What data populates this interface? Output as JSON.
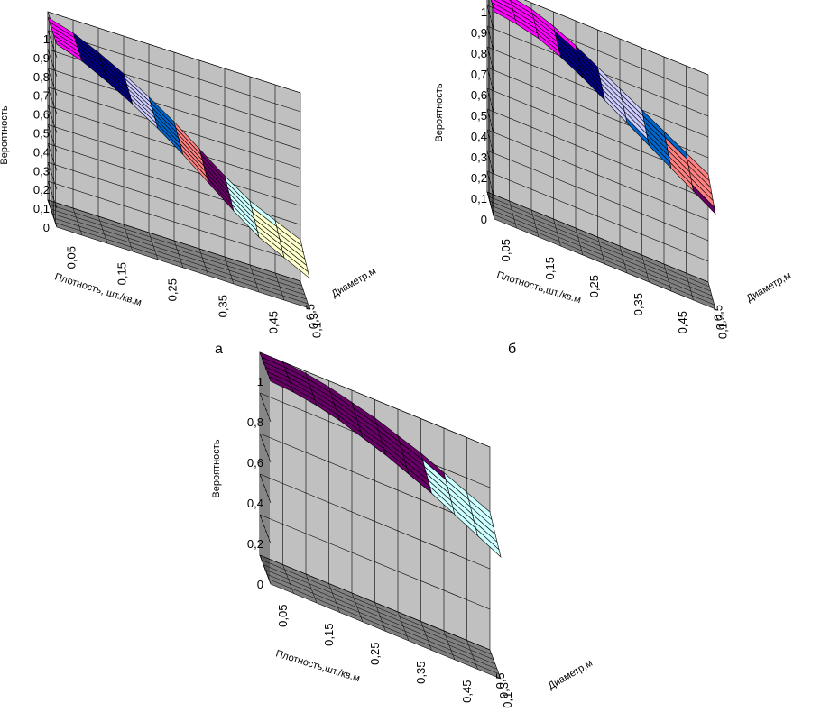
{
  "colors": {
    "wall": "#c0c0c0",
    "floor": "#808080",
    "grid": "#000000",
    "band_0.9_1": "#ff00ff",
    "band_0.8_0.9": "#000080",
    "band_0.7_0.8": "#ccccff",
    "band_0.6_0.7": "#0066cc",
    "band_0.5_0.6": "#ff8080",
    "band_0.4_0.5": "#660066",
    "band_0.3_0.4": "#ccffff",
    "band_0.2_0.3": "#ffffcc",
    "band_0.8_1_coarse": "#660066",
    "band_0.6_0.8_coarse": "#ccffff"
  },
  "chart_data": [
    {
      "type": "surface3d",
      "caption": "а",
      "zlabel": "Вероятность",
      "xlabel": "Плотность, шт./кв.м",
      "ylabel": "Диаметр,м",
      "x_ticks": [
        "0,05",
        "0,15",
        "0,25",
        "0,35",
        "0,45"
      ],
      "y_ticks": [
        "0,1",
        "0,3",
        "0,5"
      ],
      "z_ticks": [
        "0",
        "0,1",
        "0,2",
        "0,3",
        "0,4",
        "0,5",
        "0,6",
        "0,7",
        "0,8",
        "0,9",
        "1"
      ],
      "zlim": [
        0,
        1
      ],
      "z_at_max_density": [
        0.97,
        0.93,
        0.87,
        0.8,
        0.72,
        0.63,
        0.53,
        0.43,
        0.34,
        0.28,
        0.22
      ],
      "diameter_effect": 0.06,
      "band_step": 0.1
    },
    {
      "type": "surface3d",
      "caption": "б",
      "zlabel": "Вероятность",
      "xlabel": "Плотность,шт./кв.м",
      "ylabel": "Диаметр,м",
      "x_ticks": [
        "0,05",
        "0,15",
        "0,25",
        "0,35",
        "0,45"
      ],
      "y_ticks": [
        "0,1",
        "0,3",
        "0,5"
      ],
      "z_ticks": [
        "0",
        "0,1",
        "0,2",
        "0,3",
        "0,4",
        "0,5",
        "0,6",
        "0,7",
        "0,8",
        "0,9",
        "1"
      ],
      "zlim": [
        0,
        1
      ],
      "z_at_max_density": [
        1.0,
        0.99,
        0.97,
        0.93,
        0.88,
        0.82,
        0.76,
        0.7,
        0.64,
        0.58,
        0.52
      ],
      "diameter_effect": 0.06,
      "band_step": 0.1
    },
    {
      "type": "surface3d",
      "caption": "",
      "zlabel": "Вероятность",
      "xlabel": "Плотность,шт./кв.м",
      "ylabel": "Диаметр,м",
      "x_ticks": [
        "0,05",
        "0,15",
        "0,25",
        "0,35",
        "0,45"
      ],
      "y_ticks": [
        "0,1",
        "0,3",
        "0,5"
      ],
      "z_ticks": [
        "0",
        "0,2",
        "0,4",
        "0,6",
        "0,8",
        "1"
      ],
      "zlim": [
        0,
        1
      ],
      "z_at_max_density": [
        1.0,
        1.0,
        0.99,
        0.97,
        0.94,
        0.91,
        0.87,
        0.83,
        0.78,
        0.73,
        0.68
      ],
      "diameter_effect": 0.08,
      "band_step": 0.2
    }
  ]
}
